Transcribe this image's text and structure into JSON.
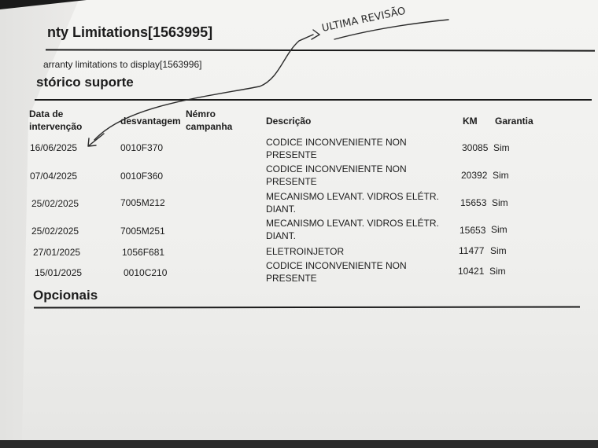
{
  "document": {
    "title": "nty Limitations[1563995]",
    "subtitle": "arranty limitations to display[1563996]",
    "section_title": "stórico suporte",
    "footer_section": "Opcionais",
    "handwritten_note": "ULTIMA REVISÃO"
  },
  "table": {
    "headers": {
      "date": "Data de intervenção",
      "code": "desvantagem",
      "campaign": "Némro campanha",
      "description": "Descrição",
      "km": "KM",
      "warranty": "Garantia"
    },
    "rows": [
      {
        "date": "16/06/2025",
        "code": "0010F370",
        "campaign": "",
        "description": "CODICE INCONVENIENTE NON PRESENTE",
        "km": "30085",
        "warranty": "Sim"
      },
      {
        "date": "07/04/2025",
        "code": "0010F360",
        "campaign": "",
        "description": "CODICE INCONVENIENTE NON PRESENTE",
        "km": "20392",
        "warranty": "Sim"
      },
      {
        "date": "25/02/2025",
        "code": "7005M212",
        "campaign": "",
        "description": "MECANISMO LEVANT. VIDROS ELÉTR. DIANT.",
        "km": "15653",
        "warranty": "Sim"
      },
      {
        "date": "25/02/2025",
        "code": "7005M251",
        "campaign": "",
        "description": "MECANISMO LEVANT. VIDROS ELÉTR. DIANT.",
        "km": "15653",
        "warranty": "Sim"
      },
      {
        "date": "27/01/2025",
        "code": "1056F681",
        "campaign": "",
        "description": "ELETROINJETOR",
        "km": "11477",
        "warranty": "Sim"
      },
      {
        "date": "15/01/2025",
        "code": "0010C210",
        "campaign": "",
        "description": "CODICE INCONVENIENTE NON PRESENTE",
        "km": "10421",
        "warranty": "Sim"
      }
    ]
  }
}
